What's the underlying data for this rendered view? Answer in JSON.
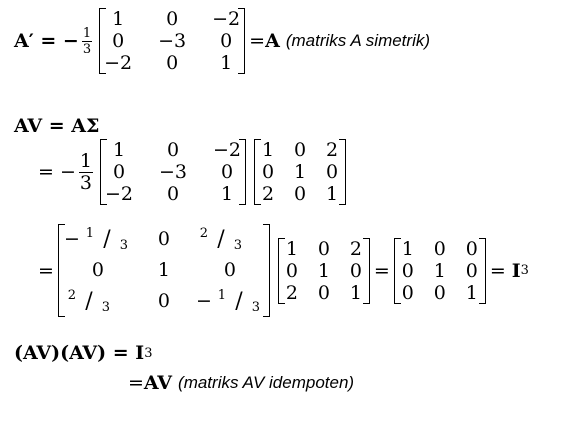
{
  "eq1": {
    "lhs": "A′ = −",
    "frac": {
      "num": "1",
      "den": "3"
    },
    "matrix": [
      "1",
      "0",
      "−2",
      "0",
      "−3",
      "0",
      "−2",
      "0",
      "1"
    ],
    "rhs_eq": "= ",
    "rhs_bold": "A",
    "note": "(matriks A simetrik)"
  },
  "eq2": {
    "line1": "AV = AΣ",
    "lead": "= −",
    "frac": {
      "num": "1",
      "den": "3"
    },
    "matrixA": [
      "1",
      "0",
      "−2",
      "0",
      "−3",
      "0",
      "−2",
      "0",
      "1"
    ],
    "matrixV": [
      "1",
      "0",
      "2",
      "0",
      "1",
      "0",
      "2",
      "0",
      "1"
    ]
  },
  "eq3": {
    "lead": "=",
    "m1": {
      "r1c1_sign": "−",
      "r1c1_num": "1",
      "r1c1_den": "3",
      "r1c2": "0",
      "r1c3_num": "2",
      "r1c3_den": "3",
      "r2c1": "0",
      "r2c2": "1",
      "r2c3": "0",
      "r3c1_num": "2",
      "r3c1_den": "3",
      "r3c2": "0",
      "r3c3_sign": "−",
      "r3c3_num": "1",
      "r3c3_den": "3"
    },
    "m2": [
      "1",
      "0",
      "2",
      "0",
      "1",
      "0",
      "2",
      "0",
      "1"
    ],
    "eq_mid": "=",
    "m3": [
      "1",
      "0",
      "0",
      "0",
      "1",
      "0",
      "0",
      "0",
      "1"
    ],
    "eq_end": "=",
    "identity": "I",
    "identity_sub": "3"
  },
  "eq4": {
    "line1": "(AV)(AV) = I",
    "line1_sub": "3",
    "line2_eq": "= ",
    "line2_bold": "AV",
    "note": "(matriks AV idempoten)"
  }
}
